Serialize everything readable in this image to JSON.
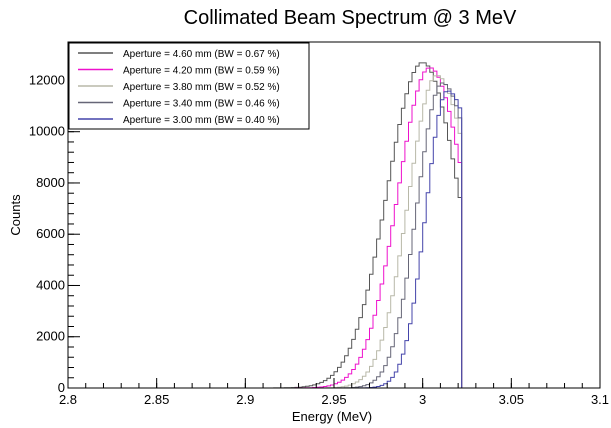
{
  "chart_data": {
    "type": "line",
    "title": "Collimated Beam Spectrum @ 3 MeV",
    "xlabel": "Energy (MeV)",
    "ylabel": "Counts",
    "xlim": [
      2.8,
      3.1
    ],
    "ylim": [
      0,
      13500
    ],
    "x_ticks": [
      "2.8",
      "2.85",
      "2.9",
      "2.95",
      "3",
      "3.05",
      "3.1"
    ],
    "y_ticks": [
      "0",
      "2000",
      "4000",
      "6000",
      "8000",
      "10000",
      "12000"
    ],
    "grid": false,
    "legend_position": "top-left",
    "bin_width": 0.002,
    "series": [
      {
        "name": "Aperture = 4.60 mm (BW = 0.67 %)",
        "color": "#555555",
        "peak_x": 3.0,
        "peak_y": 12700,
        "sigma": 0.02
      },
      {
        "name": "Aperture = 4.20 mm (BW = 0.59 %)",
        "color": "#ee11cc",
        "peak_x": 3.004,
        "peak_y": 12500,
        "sigma": 0.018
      },
      {
        "name": "Aperture = 3.80 mm (BW = 0.52 %)",
        "color": "#b8b8a8",
        "peak_x": 3.008,
        "peak_y": 12200,
        "sigma": 0.016
      },
      {
        "name": "Aperture = 3.40 mm (BW = 0.46 %)",
        "color": "#666677",
        "peak_x": 3.011,
        "peak_y": 11900,
        "sigma": 0.014
      },
      {
        "name": "Aperture = 3.00 mm (BW = 0.40 %)",
        "color": "#4444aa",
        "peak_x": 3.014,
        "peak_y": 11600,
        "sigma": 0.012
      }
    ],
    "cutoff_x": 3.022
  }
}
